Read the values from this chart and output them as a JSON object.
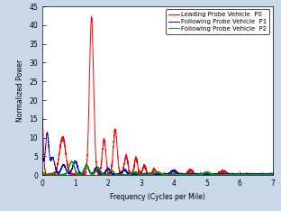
{
  "title": "",
  "xlabel": "Frequency (Cycles per Mile)",
  "ylabel": "Normalized Power",
  "xlim": [
    0,
    7
  ],
  "ylim": [
    0,
    45
  ],
  "yticks": [
    0,
    5,
    10,
    15,
    20,
    25,
    30,
    35,
    40,
    45
  ],
  "xticks": [
    0,
    1,
    2,
    3,
    4,
    5,
    6,
    7
  ],
  "legend_entries": [
    "Leading Probe Vehicle  P0",
    "Following Probe Vehicle  P1",
    "Following Probe Vehicle  P2"
  ],
  "line_colors": [
    "#ff0000",
    "#0000cc",
    "#009900"
  ],
  "line_width": 0.7,
  "bg_color": "#c8d8e8",
  "axes_color": "#ffffff",
  "font_size": 5.5,
  "legend_font_size": 5.0,
  "tick_font_size": 5.5
}
